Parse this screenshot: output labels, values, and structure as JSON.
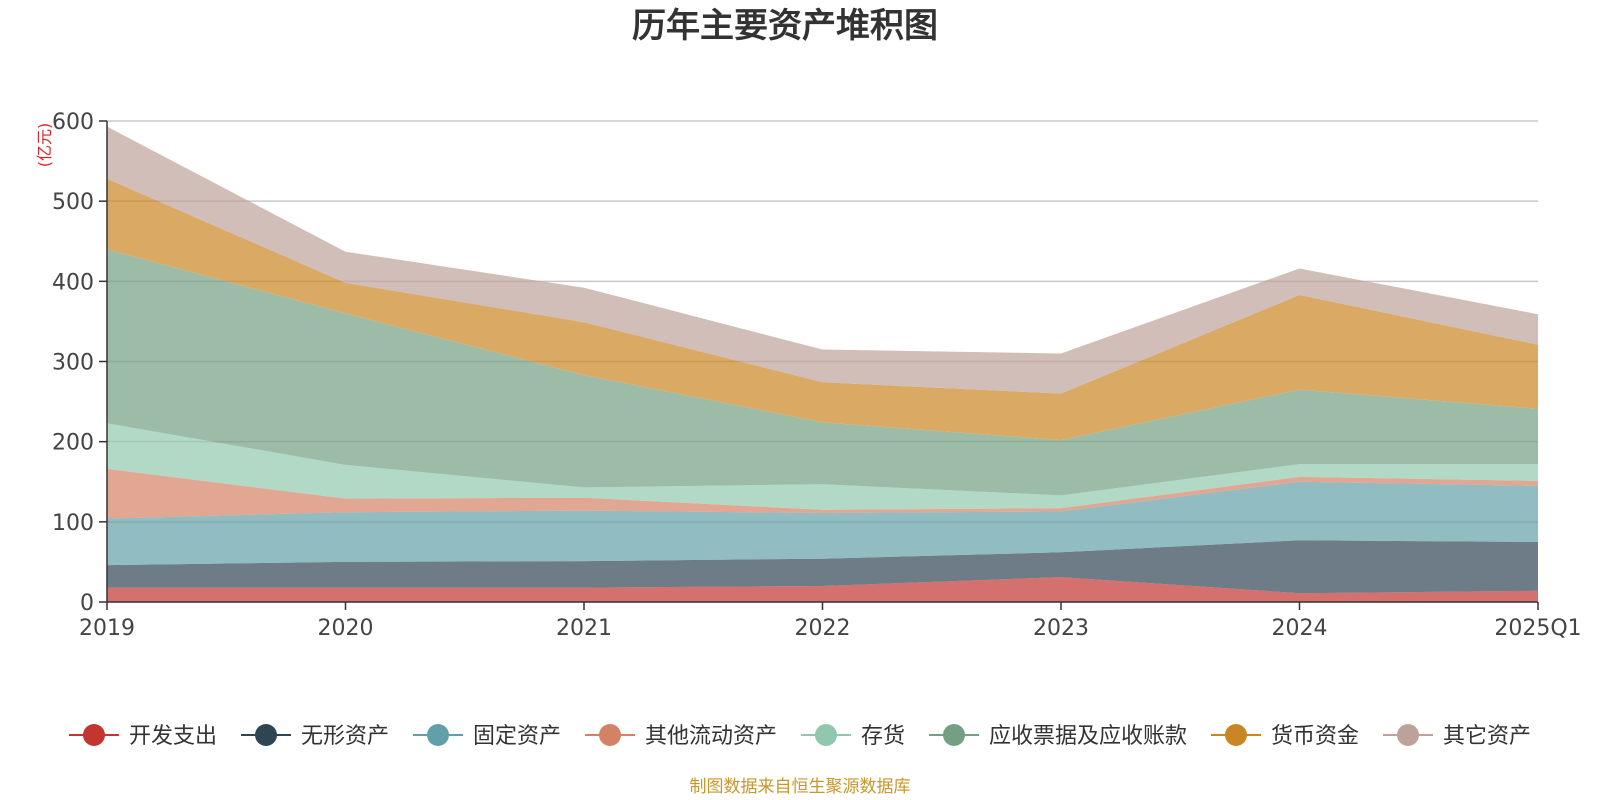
{
  "chart_data": {
    "type": "area",
    "stacked": true,
    "title": "历年主要资产堆积图",
    "unit": "(亿元)",
    "source": "制图数据来自恒生聚源数据库",
    "x": [
      "2019",
      "2020",
      "2021",
      "2022",
      "2023",
      "2024",
      "2025Q1"
    ],
    "y_ticks": [
      0,
      100,
      200,
      300,
      400,
      500,
      600
    ],
    "ylim": [
      0,
      600
    ],
    "grid": true,
    "legend_position": "bottom",
    "series": [
      {
        "name": "开发支出",
        "color": "#c23531",
        "values": [
          18,
          18,
          18,
          20,
          31,
          11,
          14
        ]
      },
      {
        "name": "无形资产",
        "color": "#2f4554",
        "values": [
          28,
          32,
          33,
          34,
          31,
          66,
          61
        ]
      },
      {
        "name": "固定资产",
        "color": "#61a0a8",
        "values": [
          58,
          62,
          63,
          57,
          51,
          73,
          70
        ]
      },
      {
        "name": "其他流动资产",
        "color": "#d48265",
        "values": [
          62,
          17,
          16,
          4,
          4,
          6,
          6
        ]
      },
      {
        "name": "存货",
        "color": "#91c7ae",
        "values": [
          57,
          42,
          13,
          32,
          16,
          16,
          21
        ]
      },
      {
        "name": "应收票据及应收账款",
        "color": "#749f83",
        "values": [
          217,
          189,
          140,
          77,
          69,
          93,
          69
        ]
      },
      {
        "name": "货币资金",
        "color": "#ca8622",
        "values": [
          88,
          38,
          66,
          50,
          58,
          118,
          80
        ]
      },
      {
        "name": "其它资产",
        "color": "#bda29a",
        "values": [
          65,
          39,
          43,
          41,
          50,
          33,
          38
        ]
      }
    ]
  }
}
